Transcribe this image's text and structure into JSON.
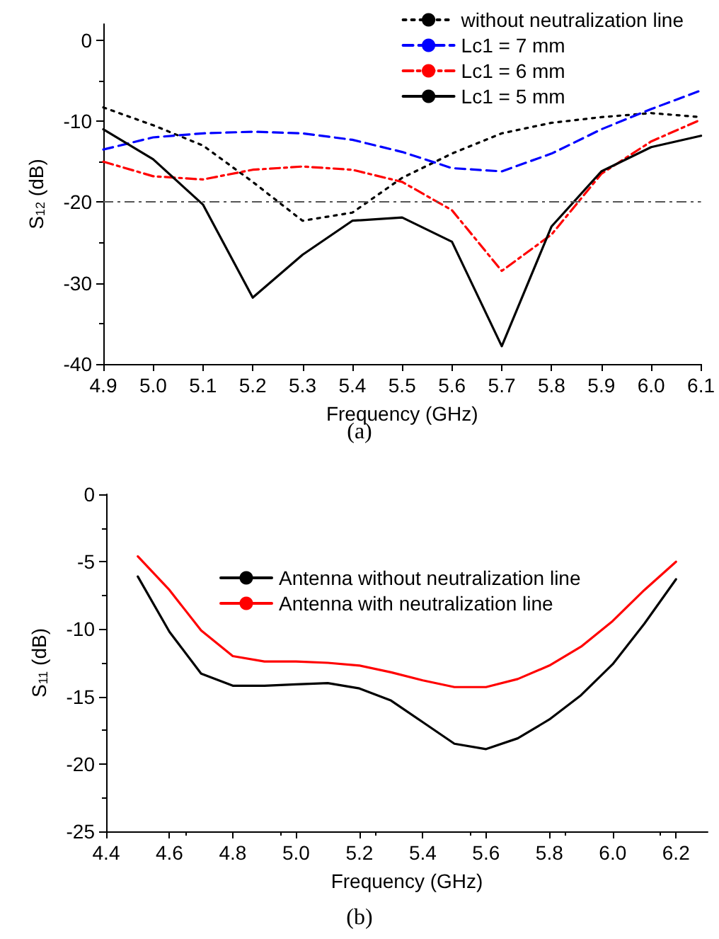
{
  "chart_data": [
    {
      "type": "line",
      "title": "(a)",
      "xlabel": "Frequency (GHz)",
      "ylabel": "S$_{12}$ (dB)",
      "x": [
        4.9,
        5.0,
        5.1,
        5.2,
        5.3,
        5.4,
        5.5,
        5.6,
        5.7,
        5.8,
        5.9,
        6.0,
        6.1
      ],
      "series": [
        {
          "name": "without neutralization line",
          "color": "#000000",
          "line_style": "dotted",
          "values": [
            -8.3,
            -10.5,
            -13,
            -17.5,
            -22.3,
            -21.3,
            -17,
            -14,
            -11.5,
            -10.2,
            -9.5,
            -9,
            -9.5
          ]
        },
        {
          "name": "Lc1 = 7 mm",
          "color": "#0000ff",
          "line_style": "dashed",
          "values": [
            -13.5,
            -12,
            -11.5,
            -11.3,
            -11.5,
            -12.3,
            -13.8,
            -15.8,
            -16.2,
            -14,
            -11,
            -8.5,
            -6.2
          ]
        },
        {
          "name": "Lc1 = 6 mm",
          "color": "#ff0000",
          "line_style": "dashdot",
          "values": [
            -15,
            -16.8,
            -17.2,
            -16,
            -15.6,
            -16,
            -17.5,
            -21,
            -28.5,
            -24,
            -16.5,
            -12.5,
            -9.8
          ]
        },
        {
          "name": "Lc1 = 5 mm",
          "color": "#000000",
          "line_style": "solid",
          "values": [
            -11,
            -14.7,
            -20.3,
            -31.8,
            -26.5,
            -22.3,
            -21.9,
            -24.9,
            -37.8,
            -23,
            -16.2,
            -13.2,
            -11.8
          ]
        }
      ],
      "xlim": [
        4.9,
        6.1
      ],
      "xticks": [
        {
          "value": 4.9,
          "label": "4.9"
        },
        {
          "value": 5.0,
          "label": "5.0"
        },
        {
          "value": 5.1,
          "label": "5.1"
        },
        {
          "value": 5.2,
          "label": "5.2"
        },
        {
          "value": 5.3,
          "label": "5.3"
        },
        {
          "value": 5.4,
          "label": "5.4"
        },
        {
          "value": 5.5,
          "label": "5.5"
        },
        {
          "value": 5.6,
          "label": "5.6"
        },
        {
          "value": 5.7,
          "label": "5.7"
        },
        {
          "value": 5.8,
          "label": "5.8"
        },
        {
          "value": 5.9,
          "label": "5.9"
        },
        {
          "value": 6.0,
          "label": "6.0"
        },
        {
          "value": 6.1,
          "label": "6.1"
        }
      ],
      "ylim": [
        -40,
        2
      ],
      "yticks": [
        -40,
        -30,
        -20,
        -10,
        0
      ],
      "ref_lines": [
        {
          "axis": "y",
          "value": -20,
          "color": "#555555",
          "line_style": "dashdot"
        }
      ],
      "legend": "top right",
      "grid": false,
      "marker": "none"
    },
    {
      "type": "line",
      "title": "(b)",
      "xlabel": "Frequency (GHz)",
      "ylabel": "S$_{11}$ (dB)",
      "x": [
        4.5,
        4.6,
        4.7,
        4.8,
        4.9,
        5.0,
        5.1,
        5.2,
        5.3,
        5.4,
        5.5,
        5.6,
        5.7,
        5.8,
        5.9,
        6.0,
        6.1,
        6.2
      ],
      "series": [
        {
          "name": "Antenna without neutralization line",
          "color": "#000000",
          "values": [
            -6.1,
            -10.2,
            -13.3,
            -14.2,
            -14.2,
            -14.1,
            -14.0,
            -14.4,
            -15.3,
            -16.9,
            -18.5,
            -18.9,
            -18.1,
            -16.7,
            -14.9,
            -12.6,
            -9.6,
            -6.3
          ]
        },
        {
          "name": "Antenna with neutralization line",
          "color": "#ff0000",
          "values": [
            -4.6,
            -7.1,
            -10.1,
            -12.0,
            -12.4,
            -12.4,
            -12.5,
            -12.7,
            -13.2,
            -13.8,
            -14.3,
            -14.3,
            -13.7,
            -12.7,
            -11.3,
            -9.4,
            -7.1,
            -5.0
          ]
        }
      ],
      "xlim": [
        4.4,
        6.3
      ],
      "xticks": [
        {
          "value": 4.4,
          "label": "4.4"
        },
        {
          "value": 4.6,
          "label": "4.6"
        },
        {
          "value": 4.8,
          "label": "4.8"
        },
        {
          "value": 5.0,
          "label": "5.0"
        },
        {
          "value": 5.2,
          "label": "5.2"
        },
        {
          "value": 5.4,
          "label": "5.4"
        },
        {
          "value": 5.6,
          "label": "5.6"
        },
        {
          "value": 5.8,
          "label": "5.8"
        },
        {
          "value": 6.0,
          "label": "6.0"
        },
        {
          "value": 6.2,
          "label": "6.2"
        }
      ],
      "ylim": [
        -25,
        0
      ],
      "yticks": [
        -25,
        -20,
        -15,
        -10,
        -5,
        0
      ],
      "legend": "top",
      "grid": false,
      "marker": "none",
      "line_style": "solid"
    }
  ]
}
